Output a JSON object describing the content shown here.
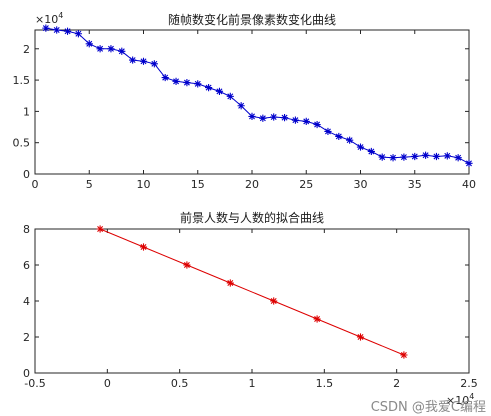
{
  "figure": {
    "background": "#ffffff"
  },
  "chart_data": [
    {
      "type": "line",
      "title": "随帧数变化前景像素数变化曲线",
      "xlabel": "",
      "ylabel": "",
      "xlim": [
        0,
        40
      ],
      "ylim": [
        0,
        23000
      ],
      "x_ticks": [
        0,
        5,
        10,
        15,
        20,
        25,
        30,
        35,
        40
      ],
      "x_tick_labels": [
        "0",
        "5",
        "10",
        "15",
        "20",
        "25",
        "30",
        "35",
        "40"
      ],
      "y_ticks": [
        0,
        5000,
        10000,
        15000,
        20000
      ],
      "y_tick_labels": [
        "0",
        "0.5",
        "1",
        "1.5",
        "2"
      ],
      "y_exponent_base": "×10",
      "y_exponent_power": "4",
      "grid": false,
      "marker": "*",
      "color": "#0000cc",
      "x": [
        1,
        2,
        3,
        4,
        5,
        6,
        7,
        8,
        9,
        10,
        11,
        12,
        13,
        14,
        15,
        16,
        17,
        18,
        19,
        20,
        21,
        22,
        23,
        24,
        25,
        26,
        27,
        28,
        29,
        30,
        31,
        32,
        33,
        34,
        35,
        36,
        37,
        38,
        39,
        40
      ],
      "y": [
        23300,
        23000,
        22800,
        22400,
        20800,
        20000,
        20000,
        19600,
        18200,
        18000,
        17600,
        15400,
        14800,
        14600,
        14400,
        13800,
        13200,
        12400,
        10900,
        9200,
        8900,
        9100,
        9000,
        8600,
        8400,
        7900,
        6800,
        6000,
        5400,
        4300,
        3600,
        2700,
        2600,
        2700,
        2800,
        3000,
        2800,
        2900,
        2600,
        1700
      ]
    },
    {
      "type": "line",
      "title": "前景人数与人数的拟合曲线",
      "xlabel": "",
      "ylabel": "",
      "xlim": [
        -5000,
        25000
      ],
      "ylim": [
        0,
        8
      ],
      "x_ticks": [
        -5000,
        0,
        5000,
        10000,
        15000,
        20000,
        25000
      ],
      "x_tick_labels": [
        "-0.5",
        "0",
        "0.5",
        "1",
        "1.5",
        "2",
        "2.5"
      ],
      "y_ticks": [
        0,
        2,
        4,
        6,
        8
      ],
      "y_tick_labels": [
        "0",
        "2",
        "4",
        "6",
        "8"
      ],
      "x_exponent_base": "×10",
      "x_exponent_power": "4",
      "grid": false,
      "marker": "*",
      "color": "#dd0000",
      "x": [
        -500,
        2500,
        5500,
        8500,
        11500,
        14500,
        17500,
        20500
      ],
      "y": [
        8,
        7,
        6,
        5,
        4,
        3,
        2,
        1
      ]
    }
  ],
  "watermark": {
    "text": "CSDN @我爱C编程"
  }
}
